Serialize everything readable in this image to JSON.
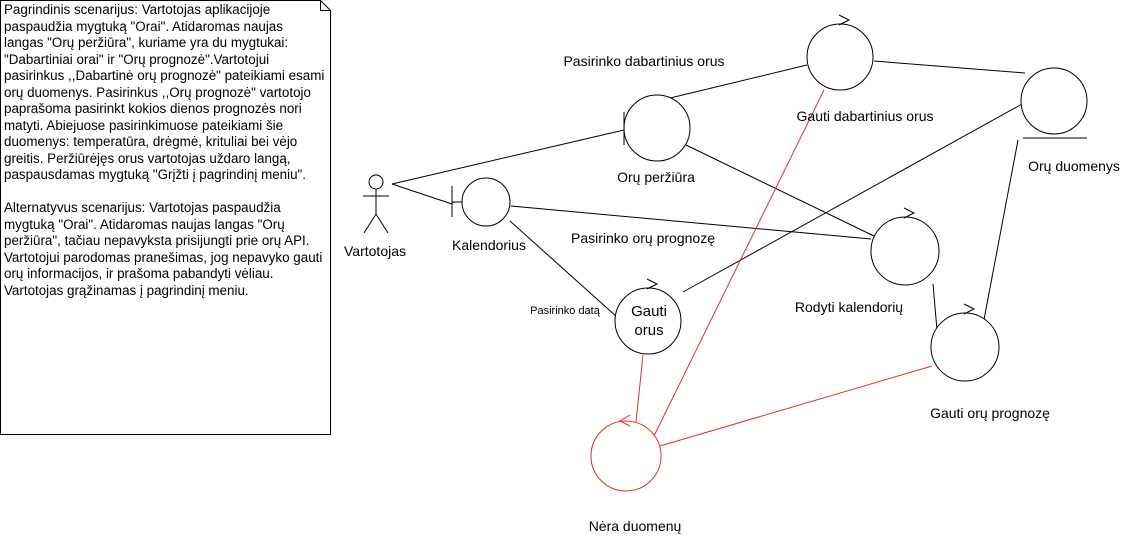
{
  "note": {
    "text": "Pagrindinis scenarijus: Vartotojas aplikacijoje paspaudžia mygtuką \"Orai\". Atidaromas naujas langas \"Orų peržiūra\", kuriame yra du mygtukai: \"Dabartiniai orai\" ir \"Orų prognozė\".Vartotojui pasirinkus ,,Dabartinė orų prognozė\" pateikiami esami orų duomenys. Pasirinkus ,,Orų prognozė\" vartotojo paprašoma pasirinkt kokios dienos prognozės nori matyti. Abiejuose pasirinkimuose pateikiami šie duomenys: temperatūra, drėgmė, krituliai bei vėjo greitis. Peržiūrėjęs orus vartotojas uždaro langą, paspausdamas mygtuką \"Grįžti į pagrindinį meniu\".\n\nAlternatyvus scenarijus: Vartotojas paspaudžia mygtuką \"Orai\". Atidaromas naujas langas \"Orų peržiūra\", tačiau nepavyksta prisijungti prie orų API. Vartotojui parodomas pranešimas, jog nepavyko gauti orų informacijos, ir prašoma pabandyti vėliau. Vartotojas grąžinamas į pagrindinį meniu."
  },
  "actor": {
    "label": "Vartotojas"
  },
  "boundaries": {
    "oru_perziura": "Orų peržiūra",
    "kalendorius": "Kalendorius"
  },
  "controls": {
    "gauti_dabartinius": "Gauti dabartinius orus",
    "rodyti_kalendoriu": "Rodyti kalendorių",
    "gauti_orus": "Gauti\norus",
    "gauti_prognoze": "Gauti orų prognozę",
    "nera_duomenu": "Nėra duomenų"
  },
  "entity": {
    "oru_duomenys": "Orų duomenys"
  },
  "edge_labels": {
    "pasirinko_dabartinius": "Pasirinko dabartinius orus",
    "pasirinko_prognoze": "Pasirinko orų prognozę",
    "pasirinko_data": "Pasirinko datą"
  },
  "colors": {
    "stroke": "#000000",
    "error": "#e0302a",
    "background": "#ffffff"
  }
}
